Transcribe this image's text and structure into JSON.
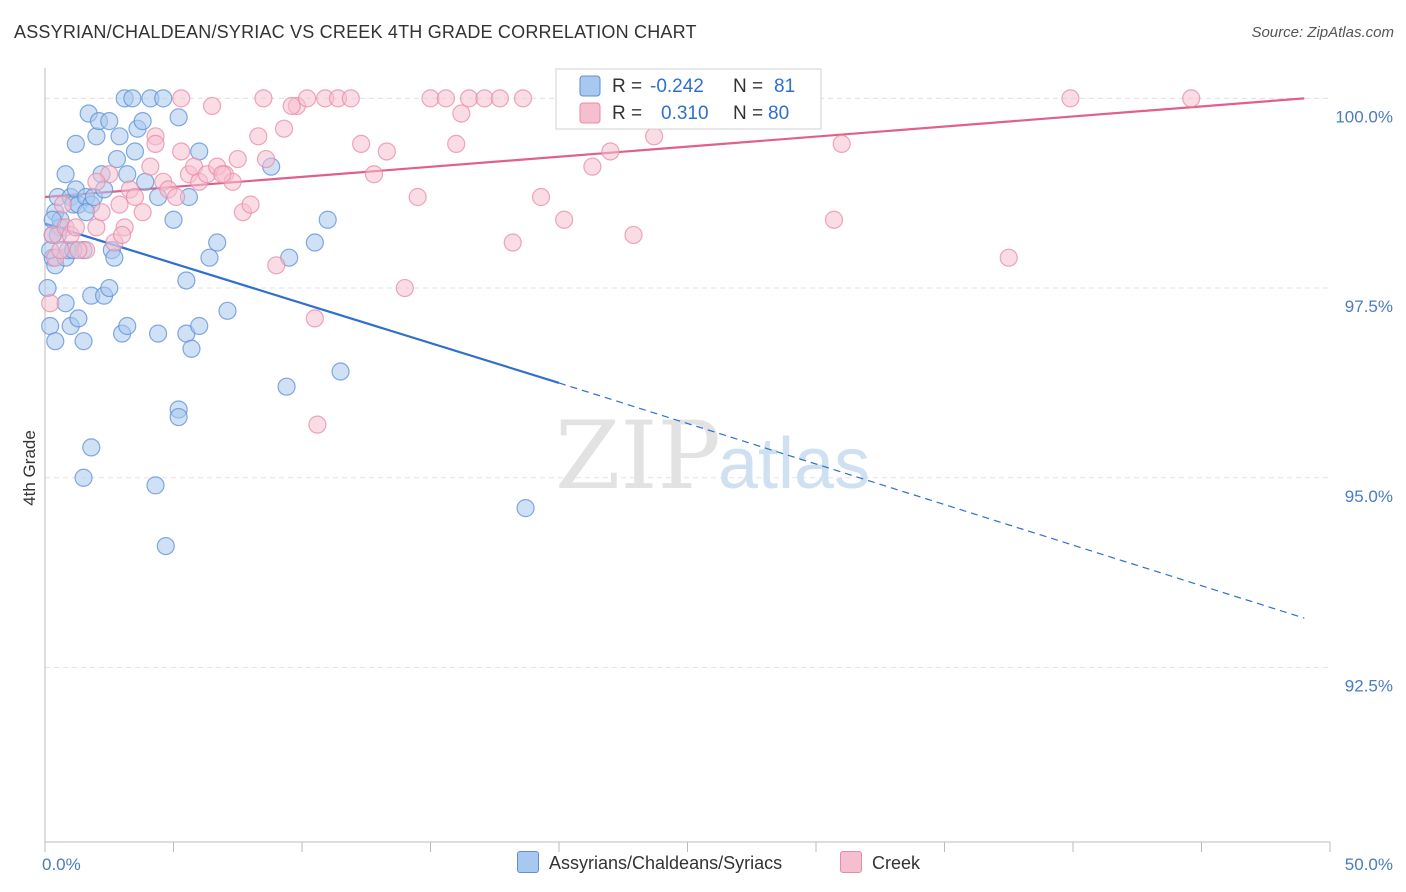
{
  "title": "ASSYRIAN/CHALDEAN/SYRIAC VS CREEK 4TH GRADE CORRELATION CHART",
  "source": "Source: ZipAtlas.com",
  "watermark": {
    "zip": "ZIP",
    "atlas": "atlas"
  },
  "colors": {
    "blue_fill": "#a9c8ef",
    "blue_stroke": "#5b8fd6",
    "blue_line": "#2f6fce",
    "pink_fill": "#f6bfd0",
    "pink_stroke": "#e88aa8",
    "pink_line": "#e0608a",
    "grid": "#e3e3e3",
    "axis_label": "#4a7cc0"
  },
  "legend": {
    "row1": {
      "r_label": "R =",
      "r_value": "-0.242",
      "n_label": "N =",
      "n_value": "81"
    },
    "row2": {
      "r_label": "R =",
      "r_value": "0.310",
      "n_label": "N =",
      "n_value": "80"
    }
  },
  "bottom_legend": {
    "series1": "Assyrians/Chaldeans/Syriacs",
    "series2": "Creek"
  },
  "chart_data": {
    "type": "scatter",
    "title": "ASSYRIAN/CHALDEAN/SYRIAC VS CREEK 4TH GRADE CORRELATION CHART",
    "xlabel": "",
    "ylabel": "4th Grade",
    "xlim": [
      0,
      50
    ],
    "ylim": [
      90.2,
      100.4
    ],
    "x_tick_labels": {
      "left": "0.0%",
      "right": "50.0%"
    },
    "y_ticks": [
      {
        "value": 100.0,
        "label": "100.0%"
      },
      {
        "value": 97.5,
        "label": "97.5%"
      },
      {
        "value": 95.0,
        "label": "95.0%"
      },
      {
        "value": 92.5,
        "label": "92.5%"
      }
    ],
    "grid": true,
    "series": [
      {
        "name": "Assyrians/Chaldeans/Syriacs",
        "r": -0.242,
        "n": 81,
        "trend": {
          "x0": 0.0,
          "y0": 98.35,
          "x1": 20.0,
          "y1": 96.25,
          "dash_x1": 49.0,
          "dash_y1": 93.15
        },
        "points": [
          [
            0.1,
            97.5
          ],
          [
            0.3,
            97.9
          ],
          [
            0.3,
            98.2
          ],
          [
            0.4,
            98.5
          ],
          [
            0.4,
            97.8
          ],
          [
            0.5,
            98.7
          ],
          [
            0.6,
            98.3
          ],
          [
            0.6,
            98.4
          ],
          [
            0.8,
            99.0
          ],
          [
            0.8,
            97.9
          ],
          [
            0.9,
            98.0
          ],
          [
            1.0,
            98.7
          ],
          [
            1.1,
            98.6
          ],
          [
            1.2,
            98.8
          ],
          [
            1.2,
            99.4
          ],
          [
            1.3,
            98.6
          ],
          [
            1.5,
            98.0
          ],
          [
            1.6,
            98.7
          ],
          [
            1.7,
            99.8
          ],
          [
            1.8,
            98.6
          ],
          [
            1.9,
            98.7
          ],
          [
            2.0,
            99.5
          ],
          [
            2.1,
            99.7
          ],
          [
            2.2,
            99.0
          ],
          [
            2.3,
            98.8
          ],
          [
            2.5,
            99.7
          ],
          [
            2.6,
            98.0
          ],
          [
            2.7,
            97.9
          ],
          [
            2.8,
            99.2
          ],
          [
            2.9,
            99.5
          ],
          [
            3.1,
            100.0
          ],
          [
            3.2,
            99.0
          ],
          [
            3.4,
            100.0
          ],
          [
            3.5,
            99.3
          ],
          [
            3.6,
            99.6
          ],
          [
            3.8,
            99.7
          ],
          [
            3.9,
            98.9
          ],
          [
            4.1,
            100.0
          ],
          [
            4.4,
            98.7
          ],
          [
            4.6,
            100.0
          ],
          [
            5.0,
            98.4
          ],
          [
            5.2,
            99.75
          ],
          [
            5.6,
            98.7
          ],
          [
            5.5,
            97.6
          ],
          [
            6.0,
            99.3
          ],
          [
            6.4,
            97.9
          ],
          [
            6.7,
            98.1
          ],
          [
            7.1,
            97.2
          ],
          [
            8.8,
            99.1
          ],
          [
            9.5,
            97.9
          ],
          [
            10.5,
            98.1
          ],
          [
            11.0,
            98.4
          ],
          [
            0.2,
            97.0
          ],
          [
            0.4,
            96.8
          ],
          [
            0.8,
            97.3
          ],
          [
            1.0,
            97.0
          ],
          [
            1.3,
            97.1
          ],
          [
            1.5,
            96.8
          ],
          [
            1.8,
            97.4
          ],
          [
            2.3,
            97.4
          ],
          [
            2.5,
            97.5
          ],
          [
            3.0,
            96.9
          ],
          [
            3.2,
            97.0
          ],
          [
            4.4,
            96.9
          ],
          [
            5.5,
            96.9
          ],
          [
            6.0,
            97.0
          ],
          [
            5.7,
            96.7
          ],
          [
            9.4,
            96.2
          ],
          [
            11.5,
            96.4
          ],
          [
            5.2,
            95.9
          ],
          [
            5.2,
            95.8
          ],
          [
            1.8,
            95.4
          ],
          [
            1.5,
            95.0
          ],
          [
            4.3,
            94.9
          ],
          [
            4.7,
            94.1
          ],
          [
            18.7,
            94.6
          ],
          [
            0.2,
            98.0
          ],
          [
            0.5,
            98.2
          ],
          [
            1.1,
            98.0
          ],
          [
            1.6,
            98.5
          ],
          [
            0.3,
            98.4
          ]
        ]
      },
      {
        "name": "Creek",
        "r": 0.31,
        "n": 80,
        "trend": {
          "x0": 0.0,
          "y0": 98.7,
          "x1": 49.0,
          "y1": 100.0
        },
        "points": [
          [
            0.2,
            97.3
          ],
          [
            0.3,
            98.2
          ],
          [
            0.4,
            97.9
          ],
          [
            0.6,
            98.0
          ],
          [
            0.8,
            98.3
          ],
          [
            1.0,
            98.2
          ],
          [
            1.2,
            98.3
          ],
          [
            1.6,
            98.0
          ],
          [
            2.0,
            98.3
          ],
          [
            2.2,
            98.5
          ],
          [
            2.5,
            99.0
          ],
          [
            2.7,
            98.1
          ],
          [
            2.9,
            98.6
          ],
          [
            3.1,
            98.3
          ],
          [
            3.3,
            98.8
          ],
          [
            3.5,
            98.7
          ],
          [
            3.8,
            98.5
          ],
          [
            4.1,
            99.1
          ],
          [
            4.3,
            99.5
          ],
          [
            4.6,
            98.9
          ],
          [
            4.8,
            98.8
          ],
          [
            5.1,
            98.7
          ],
          [
            5.3,
            99.3
          ],
          [
            5.6,
            99.0
          ],
          [
            5.8,
            99.1
          ],
          [
            6.0,
            98.9
          ],
          [
            6.3,
            99.0
          ],
          [
            6.5,
            99.9
          ],
          [
            6.7,
            99.1
          ],
          [
            7.0,
            99.0
          ],
          [
            7.3,
            98.9
          ],
          [
            7.5,
            99.2
          ],
          [
            7.7,
            98.5
          ],
          [
            8.0,
            98.6
          ],
          [
            8.3,
            99.5
          ],
          [
            8.6,
            99.2
          ],
          [
            9.0,
            97.8
          ],
          [
            9.3,
            99.6
          ],
          [
            9.8,
            99.9
          ],
          [
            10.2,
            100.0
          ],
          [
            10.5,
            97.1
          ],
          [
            10.9,
            100.0
          ],
          [
            11.4,
            100.0
          ],
          [
            12.3,
            99.4
          ],
          [
            12.8,
            99.0
          ],
          [
            13.3,
            99.3
          ],
          [
            14.0,
            97.5
          ],
          [
            14.5,
            98.7
          ],
          [
            15.0,
            100.0
          ],
          [
            15.6,
            100.0
          ],
          [
            16.0,
            99.4
          ],
          [
            16.5,
            100.0
          ],
          [
            17.1,
            100.0
          ],
          [
            17.7,
            100.0
          ],
          [
            18.2,
            98.1
          ],
          [
            18.6,
            100.0
          ],
          [
            19.3,
            98.7
          ],
          [
            20.2,
            98.4
          ],
          [
            21.3,
            99.1
          ],
          [
            22.0,
            99.3
          ],
          [
            22.9,
            98.2
          ],
          [
            23.7,
            99.5
          ],
          [
            25.0,
            100.0
          ],
          [
            30.7,
            98.4
          ],
          [
            31.0,
            99.4
          ],
          [
            37.5,
            97.9
          ],
          [
            39.9,
            100.0
          ],
          [
            44.6,
            100.0
          ],
          [
            10.6,
            95.7
          ],
          [
            5.3,
            100.0
          ],
          [
            8.5,
            100.0
          ],
          [
            11.9,
            100.0
          ],
          [
            16.2,
            99.8
          ],
          [
            4.3,
            99.4
          ],
          [
            2.0,
            98.9
          ],
          [
            1.3,
            98.0
          ],
          [
            0.7,
            98.6
          ],
          [
            3.0,
            98.2
          ],
          [
            6.9,
            99.0
          ],
          [
            9.6,
            99.9
          ]
        ]
      }
    ]
  }
}
